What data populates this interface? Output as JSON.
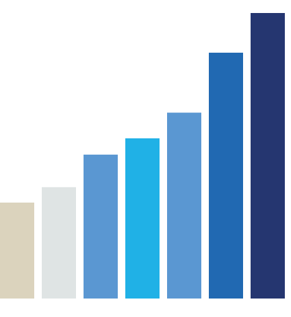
{
  "chart_data": {
    "type": "bar",
    "title": "",
    "xlabel": "",
    "ylabel": "",
    "grid": false,
    "legend": "none",
    "ylim": [
      0,
      100
    ],
    "values": [
      33.6,
      39.0,
      50.4,
      56.1,
      65.1,
      86.1,
      100.0
    ],
    "colors": [
      "#dbd3bd",
      "#dfe4e4",
      "#5a97d2",
      "#20b1e6",
      "#5a97d2",
      "#2169b2",
      "#253670"
    ]
  }
}
